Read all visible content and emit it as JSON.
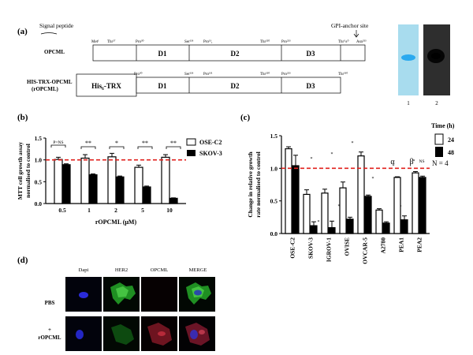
{
  "panel_a": {
    "panel_label": "(a)",
    "signal_peptide_label": "Signal peptide",
    "gpi_anchor_label": "GPI-anchor site",
    "row1_name": "OPCML",
    "row2_name": "HIS-TRX-OPCML",
    "row2_name_sub": "(rOPCML)",
    "his_trx_label": "His₆-TRX",
    "domains": [
      "D1",
      "D2",
      "D3"
    ],
    "row1_residues": [
      "Met¹",
      "Thr²⁷",
      "Pro³⁰",
      "Ser¹²⁶",
      "Pro¹³₁",
      "Thr²²⁰",
      "Pro²²³",
      "Thr³±⁰",
      "Asn³²³"
    ],
    "row2_residues": [
      "Pro³⁰",
      "Ser¹²⁶",
      "Pro¹³¹",
      "Thr²²⁰",
      "Pro²²³",
      "Thr³¹⁰"
    ],
    "gel_lanes": [
      "1",
      "2"
    ],
    "gel1_color": "#a8dcee",
    "gel1_band_color": "#2aa9ef"
  },
  "panel_b": {
    "panel_label": "(b)",
    "legend": [
      "OSE-C2",
      "SKOV-3"
    ],
    "significance": [
      "P=NS",
      "**",
      "*",
      "**",
      "**"
    ]
  },
  "panel_c": {
    "panel_label": "(c)",
    "legend_title": "Time (h)",
    "legend": [
      "24",
      "48"
    ],
    "n_label": "N = 4",
    "annotations": [
      "α",
      "β",
      "NS"
    ],
    "star_marks": [
      "*",
      "*",
      "*",
      "*",
      "*",
      "*",
      "*",
      "*",
      "*",
      "*",
      "*",
      "*",
      "*",
      "*"
    ]
  },
  "panel_d": {
    "panel_label": "(d)",
    "columns": [
      "Dapi",
      "HER2",
      "OPCML",
      "MERGE"
    ],
    "rows": [
      "PBS",
      "+",
      "rOPCML"
    ]
  },
  "chart_data": [
    {
      "id": "b",
      "type": "bar",
      "categories": [
        "0.5",
        "1",
        "2",
        "5",
        "10"
      ],
      "xlabel": "rOPCML (μM)",
      "ylabel_lines": [
        "MTT cell growth assay",
        "normalised to control"
      ],
      "ylim": [
        0,
        1.5
      ],
      "yticks": [
        "0.0",
        "0.5",
        "1.0",
        "1.5"
      ],
      "reference_line": 1.0,
      "series": [
        {
          "name": "OSE-C2",
          "values": [
            1.01,
            1.04,
            1.07,
            0.83,
            1.06
          ],
          "errors": [
            0.05,
            0.08,
            0.08,
            0.05,
            0.06
          ],
          "color": "#ffffff"
        },
        {
          "name": "SKOV-3",
          "values": [
            0.89,
            0.66,
            0.61,
            0.38,
            0.12
          ],
          "errors": [
            0.02,
            0.02,
            0.02,
            0.02,
            0.01
          ],
          "color": "#000000"
        }
      ]
    },
    {
      "id": "c",
      "type": "bar",
      "categories": [
        "OSE-C2",
        "SKOV-3",
        "IGROV-1",
        "OVISE",
        "OVCAR-5",
        "A2780",
        "PEA1",
        "PEA2"
      ],
      "ylabel_lines": [
        "Change in relative growth",
        "rate normalised to control"
      ],
      "ylim": [
        0,
        1.5
      ],
      "yticks": [
        "0.0",
        "0.5",
        "1.0",
        "1.5"
      ],
      "reference_line": 1.0,
      "series": [
        {
          "name": "24",
          "values": [
            1.3,
            0.6,
            0.62,
            0.7,
            1.19,
            0.36,
            0.86,
            0.93
          ],
          "errors": [
            0.03,
            0.07,
            0.06,
            0.09,
            0.06,
            0.02,
            0.01,
            0.02
          ],
          "color": "#ffffff"
        },
        {
          "name": "48",
          "values": [
            1.04,
            0.12,
            0.09,
            0.22,
            0.57,
            0.16,
            0.21,
            0.86
          ],
          "errors": [
            0.16,
            0.06,
            0.1,
            0.03,
            0.02,
            0.02,
            0.06,
            0.02
          ],
          "color": "#000000"
        }
      ]
    }
  ]
}
